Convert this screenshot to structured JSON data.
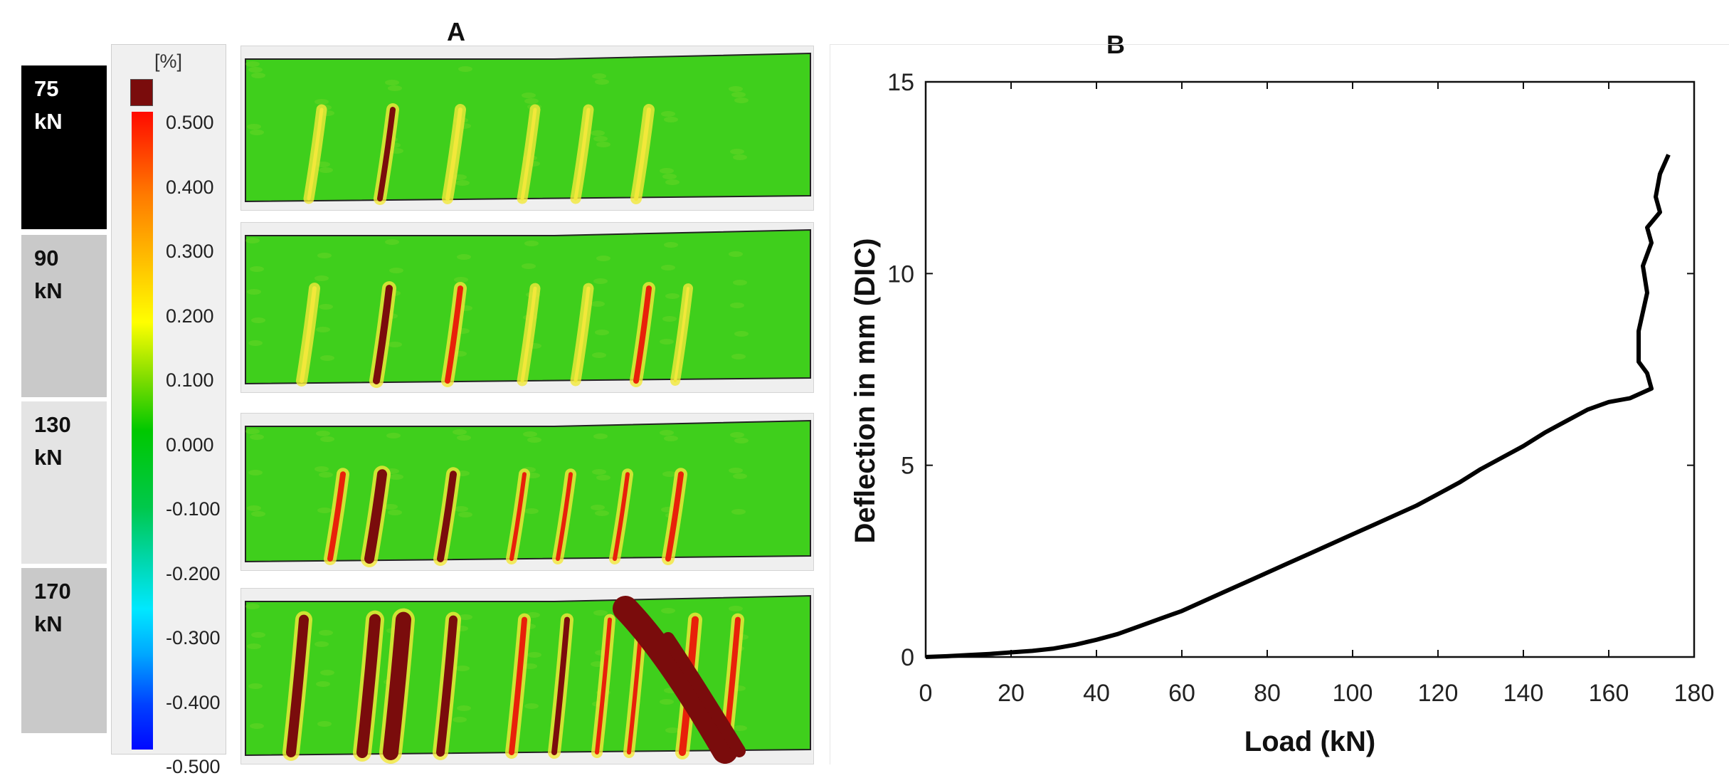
{
  "panels": {
    "a_label": "A",
    "b_label": "B"
  },
  "load_stages": [
    {
      "value": "75",
      "unit": "kN",
      "color": "#000000",
      "text_color": "#ffffff"
    },
    {
      "value": "90",
      "unit": "kN",
      "color": "#c9c9c9",
      "text_color": "#111111"
    },
    {
      "value": "130",
      "unit": "kN",
      "color": "#e4e4e4",
      "text_color": "#111111"
    },
    {
      "value": "170",
      "unit": "kN",
      "color": "#c9c9c9",
      "text_color": "#111111"
    }
  ],
  "strain_scale": {
    "unit": "[%]",
    "ticks": [
      "0.500",
      "0.400",
      "0.300",
      "0.200",
      "0.100",
      "0.000",
      "-0.100",
      "-0.200",
      "-0.300",
      "-0.400",
      "-0.500"
    ]
  },
  "colors": {
    "field_green": "#3fcf1c",
    "crack_dark": "#7a0c0c",
    "crack_red": "#e8200a",
    "crack_yellow": "#f2e83a"
  },
  "chart_data": {
    "type": "line",
    "title": "",
    "xlabel": "Load (kN)",
    "ylabel": "Deflection in mm (DIC)",
    "xlim": [
      0,
      180
    ],
    "ylim": [
      0,
      15
    ],
    "xticks": [
      0,
      20,
      40,
      60,
      80,
      100,
      120,
      140,
      160,
      180
    ],
    "yticks": [
      0,
      5,
      10,
      15
    ],
    "series": [
      {
        "name": "Deflection",
        "x": [
          0,
          5,
          10,
          15,
          20,
          25,
          30,
          35,
          40,
          45,
          50,
          55,
          60,
          65,
          70,
          75,
          80,
          85,
          90,
          95,
          100,
          105,
          110,
          115,
          120,
          125,
          130,
          135,
          140,
          145,
          150,
          155,
          160,
          165,
          170,
          169,
          167,
          167,
          169,
          168,
          170,
          169,
          172,
          171,
          172,
          174
        ],
        "y": [
          0,
          0.02,
          0.05,
          0.08,
          0.12,
          0.16,
          0.22,
          0.32,
          0.45,
          0.6,
          0.8,
          1.0,
          1.2,
          1.45,
          1.7,
          1.95,
          2.2,
          2.45,
          2.7,
          2.95,
          3.2,
          3.45,
          3.7,
          3.95,
          4.25,
          4.55,
          4.9,
          5.2,
          5.5,
          5.85,
          6.15,
          6.45,
          6.65,
          6.75,
          7.0,
          7.4,
          7.7,
          8.5,
          9.5,
          10.2,
          10.8,
          11.2,
          11.6,
          12.0,
          12.6,
          13.1
        ]
      }
    ]
  }
}
